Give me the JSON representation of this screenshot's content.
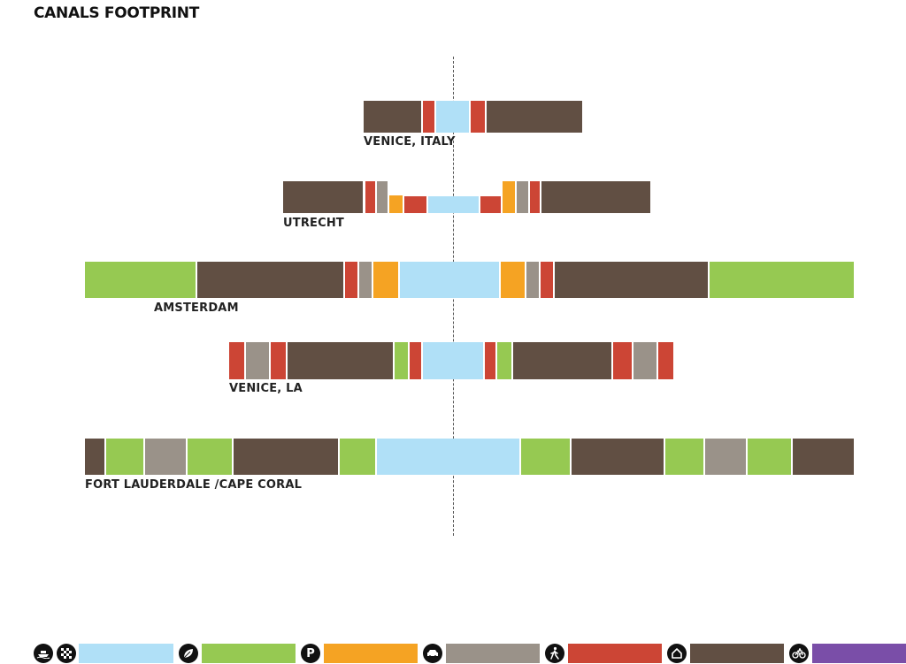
{
  "title": "CANALS FOOTPRINT",
  "colors": {
    "water": "#b0e0f7",
    "green": "#96c952",
    "parking": "#f5a323",
    "road": "#9a9289",
    "pedestrian": "#cc4535",
    "building": "#614f43",
    "bike": "#7a4ea8"
  },
  "rows": [
    {
      "label": "VENICE, ITALY",
      "segments": [
        "building",
        "pedestrian",
        "water",
        "pedestrian",
        "building"
      ]
    },
    {
      "label": "UTRECHT",
      "segments": [
        "building",
        "pedestrian",
        "road",
        "parking",
        "pedestrian",
        "water",
        "pedestrian",
        "parking",
        "road",
        "pedestrian",
        "building"
      ]
    },
    {
      "label": "AMSTERDAM",
      "segments": [
        "green",
        "building",
        "pedestrian",
        "road",
        "parking",
        "water",
        "parking",
        "road",
        "pedestrian",
        "building",
        "green"
      ]
    },
    {
      "label": "VENICE, LA",
      "segments": [
        "pedestrian",
        "road",
        "pedestrian",
        "building",
        "green",
        "pedestrian",
        "water",
        "pedestrian",
        "green",
        "building",
        "pedestrian",
        "road",
        "pedestrian"
      ]
    },
    {
      "label": "FORT LAUDERDALE /CAPE CORAL",
      "segments": [
        "building",
        "green",
        "road",
        "green",
        "building",
        "green",
        "water",
        "green",
        "building",
        "green",
        "road",
        "green",
        "building"
      ]
    }
  ],
  "legend": [
    {
      "icon": "boat-icon",
      "icon2": "grid-icon",
      "color_key": "water"
    },
    {
      "icon": "leaf-icon",
      "color_key": "green"
    },
    {
      "icon": "parking-icon",
      "glyph": "P",
      "color_key": "parking"
    },
    {
      "icon": "car-icon",
      "color_key": "road"
    },
    {
      "icon": "pedestrian-icon",
      "color_key": "pedestrian"
    },
    {
      "icon": "house-icon",
      "color_key": "building"
    },
    {
      "icon": "bike-icon",
      "color_key": "bike"
    }
  ]
}
